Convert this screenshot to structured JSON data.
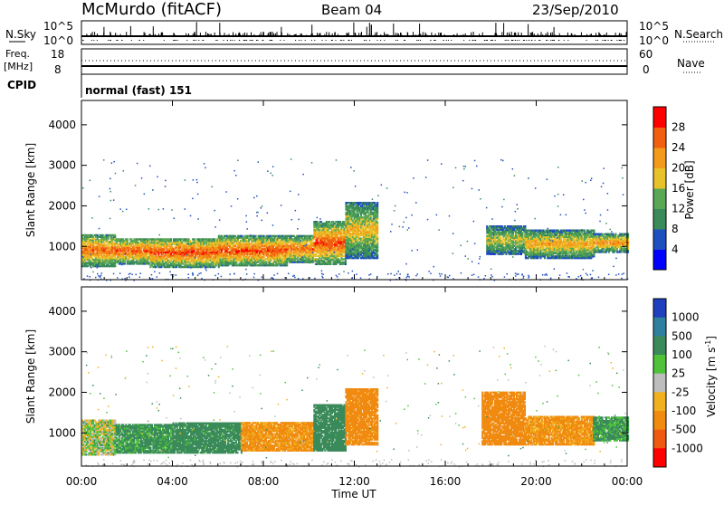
{
  "header": {
    "station": "McMurdo (fitACF)",
    "beam": "Beam 04",
    "date": "23/Sep/2010",
    "mode": "normal (fast) 151"
  },
  "panels": {
    "noise": {
      "left_label": "N.Sky",
      "left_ticks": [
        "10^5",
        "10^0"
      ],
      "right_label": "N.Search",
      "right_ticks": [
        "10^5",
        "10^0"
      ]
    },
    "freq": {
      "left_label_1": "Freq.",
      "left_label_2": "[MHz]",
      "left_ticks": [
        "18",
        "8"
      ],
      "right_label": "Nave",
      "right_ticks": [
        "60",
        "0"
      ]
    },
    "cpid_label": "CPID"
  },
  "axes": {
    "xlabel": "Time UT",
    "xticks": [
      "00:00",
      "04:00",
      "08:00",
      "12:00",
      "16:00",
      "20:00",
      "00:00"
    ],
    "ylabel": "Slant Range [km]",
    "yticks": [
      "1000",
      "2000",
      "3000",
      "4000"
    ]
  },
  "colorbars": {
    "power": {
      "label": "Power [dB]",
      "ticks": [
        "4",
        "8",
        "12",
        "16",
        "20",
        "24",
        "28"
      ],
      "colors": [
        "#0000ff",
        "#1f4fbf",
        "#3a8a5a",
        "#5aa855",
        "#e8c22a",
        "#f39a1d",
        "#f06010",
        "#ff0000"
      ]
    },
    "velocity": {
      "label": "Velocity [m s",
      "label_sup": "-1",
      "label_end": "]",
      "ticks": [
        "1000",
        "500",
        "100",
        "25",
        "-25",
        "-100",
        "-500",
        "-1000"
      ],
      "colors": [
        "#1f3fbf",
        "#2f7f9f",
        "#3a8a5a",
        "#4fc23a",
        "#bdbdbd",
        "#f0b020",
        "#f08a10",
        "#f05a10",
        "#ff0000"
      ]
    }
  },
  "chart_data": [
    {
      "type": "heatmap",
      "title": "Power",
      "xlabel": "Time UT",
      "ylabel": "Slant Range [km]",
      "xlim": [
        0,
        24
      ],
      "ylim": [
        180,
        4600
      ],
      "zlabel": "Power [dB]",
      "zlim": [
        0,
        32
      ],
      "bands": [
        {
          "t": [
            0,
            1.5
          ],
          "r": [
            500,
            1300
          ],
          "level": 26
        },
        {
          "t": [
            1.5,
            3
          ],
          "r": [
            560,
            1200
          ],
          "level": 27
        },
        {
          "t": [
            3,
            6
          ],
          "r": [
            480,
            1200
          ],
          "level": 28
        },
        {
          "t": [
            6,
            9
          ],
          "r": [
            520,
            1250
          ],
          "level": 28
        },
        {
          "t": [
            9,
            10.2
          ],
          "r": [
            600,
            1250
          ],
          "level": 26
        },
        {
          "t": [
            10.2,
            11.6
          ],
          "r": [
            550,
            1600
          ],
          "level": 28
        },
        {
          "t": [
            11.6,
            13
          ],
          "r": [
            700,
            2100
          ],
          "level": 20
        },
        {
          "t": [
            17.8,
            19.5
          ],
          "r": [
            800,
            1500
          ],
          "level": 18
        },
        {
          "t": [
            19.5,
            22.5
          ],
          "r": [
            700,
            1400
          ],
          "level": 22
        },
        {
          "t": [
            22.5,
            24
          ],
          "r": [
            850,
            1300
          ],
          "level": 24
        }
      ]
    },
    {
      "type": "heatmap",
      "title": "Velocity",
      "xlabel": "Time UT",
      "ylabel": "Slant Range [km]",
      "xlim": [
        0,
        24
      ],
      "ylim": [
        180,
        4600
      ],
      "zlabel": "Velocity [m s-1]",
      "zlim": [
        -1000,
        1000
      ],
      "bands": [
        {
          "t": [
            0,
            1.5
          ],
          "r": [
            450,
            1300
          ],
          "value": 20
        },
        {
          "t": [
            1.5,
            4
          ],
          "r": [
            500,
            1200
          ],
          "value": 150
        },
        {
          "t": [
            4,
            7
          ],
          "r": [
            500,
            1250
          ],
          "value": 200
        },
        {
          "t": [
            7,
            10.2
          ],
          "r": [
            550,
            1250
          ],
          "value": -150
        },
        {
          "t": [
            10.2,
            11.6
          ],
          "r": [
            550,
            1700
          ],
          "value": 250
        },
        {
          "t": [
            11.6,
            13
          ],
          "r": [
            700,
            2100
          ],
          "value": -200
        },
        {
          "t": [
            17.6,
            19.5
          ],
          "r": [
            700,
            2000
          ],
          "value": -300
        },
        {
          "t": [
            19.5,
            22.5
          ],
          "r": [
            700,
            1400
          ],
          "value": -150
        },
        {
          "t": [
            22.5,
            24
          ],
          "r": [
            800,
            1400
          ],
          "value": 150
        }
      ]
    }
  ]
}
